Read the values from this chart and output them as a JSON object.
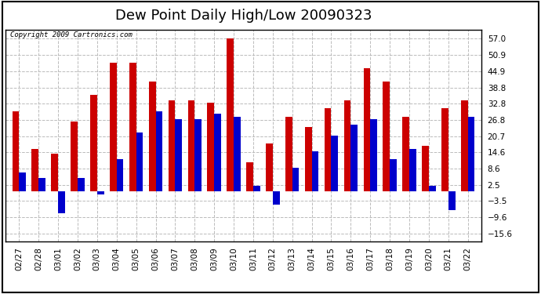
{
  "title": "Dew Point Daily High/Low 20090323",
  "copyright": "Copyright 2009 Cartronics.com",
  "dates": [
    "02/27",
    "02/28",
    "03/01",
    "03/02",
    "03/03",
    "03/04",
    "03/05",
    "03/06",
    "03/07",
    "03/08",
    "03/09",
    "03/10",
    "03/11",
    "03/12",
    "03/13",
    "03/14",
    "03/15",
    "03/16",
    "03/17",
    "03/18",
    "03/19",
    "03/20",
    "03/21",
    "03/22"
  ],
  "highs": [
    30,
    16,
    14,
    26,
    36,
    48,
    48,
    41,
    34,
    34,
    33,
    57,
    11,
    18,
    28,
    24,
    31,
    34,
    46,
    41,
    28,
    17,
    31,
    34
  ],
  "lows": [
    7,
    5,
    -8,
    5,
    -1,
    12,
    22,
    30,
    27,
    27,
    29,
    28,
    2,
    -5,
    9,
    15,
    21,
    25,
    27,
    12,
    16,
    2,
    -7,
    28
  ],
  "bar_color_high": "#cc0000",
  "bar_color_low": "#0000cc",
  "bg_color": "#ffffff",
  "grid_color": "#bbbbbb",
  "yticks": [
    -15.6,
    -9.6,
    -3.5,
    2.5,
    8.6,
    14.6,
    20.7,
    26.8,
    32.8,
    38.8,
    44.9,
    50.9,
    57.0
  ],
  "ylim": [
    -18.5,
    60.5
  ],
  "title_fontsize": 13,
  "tick_fontsize": 7.5,
  "copyright_fontsize": 6.5,
  "bar_width": 0.35
}
